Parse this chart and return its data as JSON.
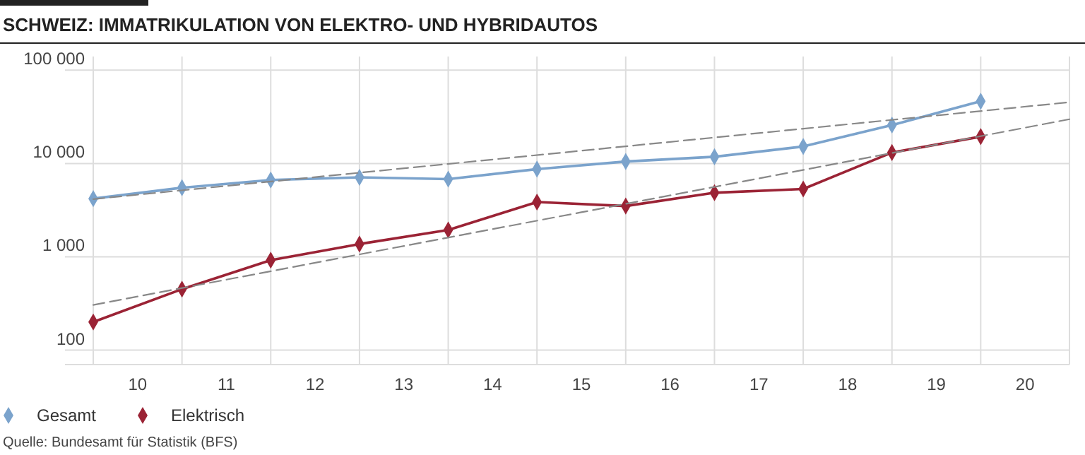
{
  "chart_data": {
    "type": "line",
    "title": "SCHWEIZ: IMMATRIKULATION VON ELEKTRO- UND HYBRIDAUTOS",
    "x": [
      9.5,
      10.5,
      11.5,
      12.5,
      13.5,
      14.5,
      15.5,
      16.5,
      17.5,
      18.5,
      19.5
    ],
    "series": [
      {
        "name": "Gesamt",
        "color": "#7ba3cc",
        "values": [
          4200,
          5500,
          6650,
          7100,
          6800,
          8700,
          10500,
          11800,
          15200,
          25800,
          46400
        ]
      },
      {
        "name": "Elektrisch",
        "color": "#9b2335",
        "values": [
          200,
          450,
          920,
          1370,
          1940,
          3860,
          3500,
          4860,
          5330,
          13100,
          19400
        ]
      },
      {
        "type": "line",
        "color": "#888888",
        "x": [
          9.5,
          15,
          20.5
        ],
        "values": [
          4150,
          13700,
          45300
        ],
        "line_style": "dashed",
        "marker": "none"
      },
      {
        "type": "line",
        "color": "#888888",
        "x": [
          9.5,
          15,
          20.5
        ],
        "values": [
          305,
          3000,
          29800
        ],
        "line_style": "dashed",
        "marker": "none"
      }
    ],
    "xlim": [
      9.5,
      20.5
    ],
    "xticks": [
      {
        "value": 9.5,
        "label": null
      },
      10,
      {
        "value": 10.5,
        "label": null
      },
      11,
      {
        "value": 11.5,
        "label": null
      },
      12,
      {
        "value": 12.5,
        "label": null
      },
      13,
      {
        "value": 13.5,
        "label": null
      },
      14,
      {
        "value": 14.5,
        "label": null
      },
      15,
      {
        "value": 15.5,
        "label": null
      },
      16,
      {
        "value": 16.5,
        "label": null
      },
      17,
      {
        "value": 17.5,
        "label": null
      },
      18,
      {
        "value": 18.5,
        "label": null
      },
      19,
      {
        "value": 19.5,
        "label": null
      },
      20,
      {
        "value": 20.5,
        "label": null
      }
    ],
    "ylim": [
      70,
      140000
    ],
    "yticks": [
      100,
      {
        "value": 1000,
        "label": "1 000"
      },
      {
        "value": 10000,
        "label": "10 000"
      },
      {
        "value": 100000,
        "label": "100 000"
      }
    ],
    "log": true,
    "grid": true,
    "marker": "diamond",
    "line_style": "solid",
    "legend": "bottom left",
    "annotations": [
      "Quelle: Bundesamt für Statistik (BFS)"
    ]
  }
}
